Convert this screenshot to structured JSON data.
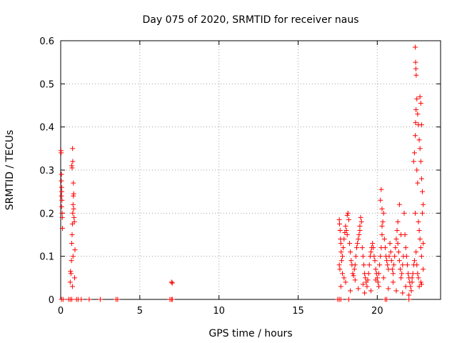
{
  "chart_data": {
    "type": "scatter",
    "title": "Day 075 of 2020, SRMTID for receiver naus",
    "xlabel": "GPS time / hours",
    "ylabel": "SRMTID / TECUs",
    "xlim": [
      0,
      24
    ],
    "ylim": [
      0,
      0.6
    ],
    "xticks": [
      0,
      5,
      10,
      15,
      20
    ],
    "xtick_labels": [
      "0",
      "5",
      "10",
      "15",
      "20"
    ],
    "yticks": [
      0,
      0.1,
      0.2,
      0.3,
      0.4,
      0.5,
      0.6
    ],
    "ytick_labels": [
      "0",
      "0.1",
      "0.2",
      "0.3",
      "0.4",
      "0.5",
      "0.6"
    ],
    "grid": true,
    "marker": "plus",
    "series": [
      {
        "name": "SRMTID",
        "color": "#ff0000",
        "points": [
          [
            0.02,
            0.345
          ],
          [
            0.03,
            0.34
          ],
          [
            0.05,
            0.29
          ],
          [
            0.06,
            0.26
          ],
          [
            0.07,
            0.25
          ],
          [
            0.05,
            0.24
          ],
          [
            0.08,
            0.23
          ],
          [
            0.06,
            0.215
          ],
          [
            0.09,
            0.2
          ],
          [
            0.1,
            0.19
          ],
          [
            0.11,
            0.165
          ],
          [
            0.04,
            0.275
          ],
          [
            0.6,
            0.04
          ],
          [
            0.62,
            0.065
          ],
          [
            0.65,
            0.06
          ],
          [
            0.68,
            0.09
          ],
          [
            0.7,
            0.13
          ],
          [
            0.72,
            0.15
          ],
          [
            0.74,
            0.175
          ],
          [
            0.76,
            0.2
          ],
          [
            0.78,
            0.22
          ],
          [
            0.8,
            0.24
          ],
          [
            0.7,
            0.31
          ],
          [
            0.72,
            0.305
          ],
          [
            0.75,
            0.35
          ],
          [
            0.8,
            0.27
          ],
          [
            0.82,
            0.245
          ],
          [
            0.84,
            0.19
          ],
          [
            0.86,
            0.18
          ],
          [
            0.9,
            0.115
          ],
          [
            0.78,
            0.1
          ],
          [
            0.74,
            0.03
          ],
          [
            0.88,
            0.05
          ],
          [
            0.76,
            0.32
          ],
          [
            0.82,
            0.21
          ],
          [
            0.05,
            0
          ],
          [
            0.15,
            0
          ],
          [
            0.5,
            0
          ],
          [
            0.6,
            0
          ],
          [
            0.7,
            0
          ],
          [
            1.0,
            0
          ],
          [
            1.1,
            0
          ],
          [
            1.3,
            0
          ],
          [
            1.8,
            0
          ],
          [
            2.5,
            0
          ],
          [
            3.5,
            0
          ],
          [
            3.6,
            0
          ],
          [
            6.9,
            0
          ],
          [
            7.0,
            0
          ],
          [
            7.05,
            0
          ],
          [
            17.5,
            0
          ],
          [
            17.6,
            0
          ],
          [
            17.7,
            0
          ],
          [
            18.2,
            0
          ],
          [
            20.5,
            0
          ],
          [
            20.6,
            0
          ],
          [
            22.0,
            0
          ],
          [
            7.0,
            0.04
          ],
          [
            7.05,
            0.038
          ],
          [
            17.6,
            0.185
          ],
          [
            17.62,
            0.175
          ],
          [
            17.65,
            0.16
          ],
          [
            17.68,
            0.14
          ],
          [
            17.7,
            0.13
          ],
          [
            17.72,
            0.11
          ],
          [
            17.75,
            0.09
          ],
          [
            17.6,
            0.08
          ],
          [
            17.64,
            0.07
          ],
          [
            17.8,
            0.1
          ],
          [
            17.85,
            0.12
          ],
          [
            17.9,
            0.14
          ],
          [
            17.95,
            0.155
          ],
          [
            18.0,
            0.17
          ],
          [
            18.05,
            0.16
          ],
          [
            18.1,
            0.15
          ],
          [
            18.1,
            0.195
          ],
          [
            18.15,
            0.2
          ],
          [
            18.2,
            0.185
          ],
          [
            18.25,
            0.13
          ],
          [
            18.3,
            0.11
          ],
          [
            18.35,
            0.09
          ],
          [
            18.4,
            0.08
          ],
          [
            18.45,
            0.06
          ],
          [
            18.5,
            0.055
          ],
          [
            18.55,
            0.07
          ],
          [
            18.6,
            0.08
          ],
          [
            18.65,
            0.1
          ],
          [
            18.7,
            0.12
          ],
          [
            18.75,
            0.13
          ],
          [
            18.8,
            0.14
          ],
          [
            18.85,
            0.15
          ],
          [
            18.9,
            0.16
          ],
          [
            18.95,
            0.19
          ],
          [
            19.0,
            0.18
          ],
          [
            19.05,
            0.12
          ],
          [
            19.1,
            0.1
          ],
          [
            19.15,
            0.08
          ],
          [
            19.2,
            0.06
          ],
          [
            19.25,
            0.05
          ],
          [
            19.3,
            0.04
          ],
          [
            19.35,
            0.03
          ],
          [
            19.4,
            0.045
          ],
          [
            19.45,
            0.06
          ],
          [
            19.5,
            0.08
          ],
          [
            19.55,
            0.1
          ],
          [
            19.6,
            0.11
          ],
          [
            19.65,
            0.12
          ],
          [
            19.7,
            0.13
          ],
          [
            19.75,
            0.12
          ],
          [
            19.8,
            0.1
          ],
          [
            19.85,
            0.09
          ],
          [
            19.9,
            0.07
          ],
          [
            19.95,
            0.06
          ],
          [
            20.0,
            0.05
          ],
          [
            20.05,
            0.04
          ],
          [
            20.1,
            0.06
          ],
          [
            20.15,
            0.08
          ],
          [
            20.2,
            0.1
          ],
          [
            20.25,
            0.12
          ],
          [
            20.3,
            0.15
          ],
          [
            20.35,
            0.18
          ],
          [
            20.4,
            0.2
          ],
          [
            20.2,
            0.23
          ],
          [
            20.25,
            0.255
          ],
          [
            20.3,
            0.21
          ],
          [
            20.45,
            0.14
          ],
          [
            20.5,
            0.12
          ],
          [
            20.55,
            0.1
          ],
          [
            20.6,
            0.09
          ],
          [
            20.65,
            0.08
          ],
          [
            20.7,
            0.07
          ],
          [
            20.75,
            0.1
          ],
          [
            20.8,
            0.13
          ],
          [
            20.85,
            0.11
          ],
          [
            20.9,
            0.09
          ],
          [
            20.95,
            0.07
          ],
          [
            21.0,
            0.06
          ],
          [
            21.05,
            0.08
          ],
          [
            21.1,
            0.1
          ],
          [
            21.15,
            0.12
          ],
          [
            21.2,
            0.14
          ],
          [
            21.25,
            0.16
          ],
          [
            21.3,
            0.13
          ],
          [
            21.35,
            0.11
          ],
          [
            21.4,
            0.09
          ],
          [
            21.45,
            0.07
          ],
          [
            21.5,
            0.05
          ],
          [
            21.55,
            0.06
          ],
          [
            21.6,
            0.08
          ],
          [
            21.65,
            0.1
          ],
          [
            21.7,
            0.2
          ],
          [
            21.75,
            0.15
          ],
          [
            21.8,
            0.12
          ],
          [
            21.85,
            0.1
          ],
          [
            21.9,
            0.08
          ],
          [
            21.95,
            0.06
          ],
          [
            22.0,
            0.05
          ],
          [
            22.05,
            0.04
          ],
          [
            22.1,
            0.03
          ],
          [
            22.15,
            0.02
          ],
          [
            22.2,
            0.04
          ],
          [
            22.25,
            0.06
          ],
          [
            22.3,
            0.08
          ],
          [
            17.7,
            0.03
          ],
          [
            17.9,
            0.05
          ],
          [
            18.3,
            0.02
          ],
          [
            18.8,
            0.025
          ],
          [
            19.2,
            0.015
          ],
          [
            19.6,
            0.02
          ],
          [
            20.1,
            0.03
          ],
          [
            20.7,
            0.025
          ],
          [
            21.2,
            0.02
          ],
          [
            21.6,
            0.015
          ],
          [
            22.0,
            0.01
          ],
          [
            18.6,
            0.045
          ],
          [
            19.1,
            0.035
          ],
          [
            19.9,
            0.045
          ],
          [
            20.4,
            0.05
          ],
          [
            21.0,
            0.04
          ],
          [
            21.8,
            0.03
          ],
          [
            22.2,
            0.05
          ],
          [
            21.4,
            0.22
          ],
          [
            21.5,
            0.15
          ],
          [
            21.3,
            0.18
          ],
          [
            20.3,
            0.17
          ],
          [
            18.9,
            0.17
          ],
          [
            17.8,
            0.06
          ],
          [
            18.0,
            0.04
          ],
          [
            22.3,
            0.32
          ],
          [
            22.35,
            0.34
          ],
          [
            22.4,
            0.38
          ],
          [
            22.42,
            0.41
          ],
          [
            22.45,
            0.44
          ],
          [
            22.5,
            0.465
          ],
          [
            22.55,
            0.43
          ],
          [
            22.6,
            0.405
          ],
          [
            22.65,
            0.37
          ],
          [
            22.7,
            0.35
          ],
          [
            22.75,
            0.32
          ],
          [
            22.8,
            0.28
          ],
          [
            22.85,
            0.25
          ],
          [
            22.9,
            0.22
          ],
          [
            22.6,
            0.18
          ],
          [
            22.65,
            0.16
          ],
          [
            22.7,
            0.14
          ],
          [
            22.75,
            0.12
          ],
          [
            22.8,
            0.1
          ],
          [
            22.5,
            0.08
          ],
          [
            22.55,
            0.06
          ],
          [
            22.6,
            0.05
          ],
          [
            22.65,
            0.03
          ],
          [
            22.4,
            0.585
          ],
          [
            22.42,
            0.55
          ],
          [
            22.44,
            0.535
          ],
          [
            22.46,
            0.52
          ],
          [
            22.7,
            0.47
          ],
          [
            22.75,
            0.455
          ],
          [
            22.8,
            0.405
          ],
          [
            22.5,
            0.3
          ],
          [
            22.55,
            0.27
          ],
          [
            22.85,
            0.2
          ],
          [
            22.9,
            0.13
          ],
          [
            22.4,
            0.2
          ],
          [
            22.45,
            0.11
          ],
          [
            22.35,
            0.09
          ],
          [
            22.9,
            0.07
          ],
          [
            22.75,
            0.04
          ],
          [
            22.8,
            0.035
          ]
        ]
      }
    ]
  }
}
